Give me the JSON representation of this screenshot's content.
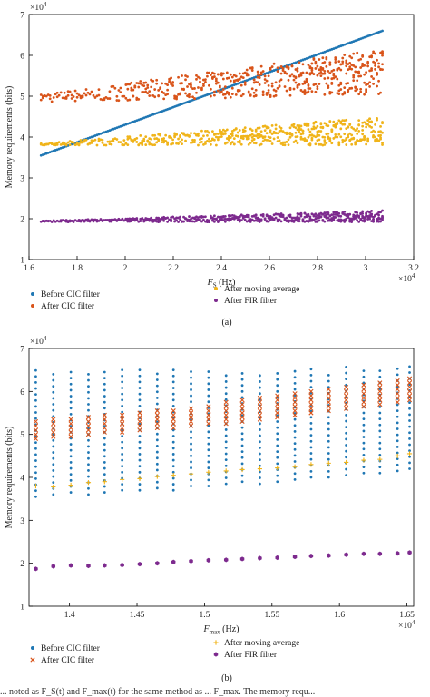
{
  "figure_caption_fragment": "... noted as F_S(t) and F_max(t) for the same method as ... F_max. The memory requ...",
  "colors": {
    "before_cic": "#1f77b4",
    "after_cic": "#d9541a",
    "after_moving_average": "#f0b41a",
    "after_fir": "#7d2a8e",
    "axis": "#000000"
  },
  "chart_data": [
    {
      "panel_label": "(a)",
      "type": "scatter",
      "xlabel_main": "F",
      "xlabel_sub": "S",
      "xlabel_unit": " (Hz)",
      "ylabel": "Memory requirements (bits)",
      "x_multiplier_base": "×10",
      "x_multiplier_exp": "4",
      "y_multiplier_base": "×10",
      "y_multiplier_exp": "4",
      "xlim": [
        1.6,
        3.2
      ],
      "ylim": [
        1,
        7
      ],
      "x_ticks": [
        "1.6",
        "1.8",
        "2",
        "2.2",
        "2.4",
        "2.6",
        "2.8",
        "3",
        "3.2"
      ],
      "x_tick_values": [
        1.6,
        1.8,
        2.0,
        2.2,
        2.4,
        2.6,
        2.8,
        3.0,
        3.2
      ],
      "y_ticks": [
        "1",
        "2",
        "3",
        "4",
        "5",
        "6",
        "7"
      ],
      "y_tick_values": [
        1,
        2,
        3,
        4,
        5,
        6,
        7
      ],
      "grid": false,
      "legend_placement": "below",
      "series": [
        {
          "name": "Before CIC filter",
          "marker": "dot",
          "color": "#1f77b4",
          "description": "linear from (1.65, 3.55) to (3.07, 6.6)",
          "x_range": [
            1.65,
            3.07
          ],
          "y_start": 3.55,
          "y_end": 6.6
        },
        {
          "name": "After CIC filter",
          "marker": "dot",
          "color": "#d9541a",
          "x_range": [
            1.65,
            3.07
          ],
          "y_low_start": 4.85,
          "y_low_end": 5.05,
          "y_high_start": 5.05,
          "y_high_end": 6.15
        },
        {
          "name": "After moving average",
          "marker": "dot",
          "color": "#f0b41a",
          "x_range": [
            1.65,
            3.07
          ],
          "y_low": 3.8,
          "y_high_start": 3.85,
          "y_high_end": 4.5
        },
        {
          "name": "After FIR filter",
          "marker": "dot",
          "color": "#7d2a8e",
          "x_range": [
            1.65,
            3.07
          ],
          "y_low": 1.92,
          "y_high_start": 1.95,
          "y_high_end": 2.2
        }
      ]
    },
    {
      "panel_label": "(b)",
      "type": "scatter",
      "xlabel_main": "F",
      "xlabel_sub": "max",
      "xlabel_unit": " (Hz)",
      "ylabel": "Memory requirements (bits)",
      "x_multiplier_base": "×10",
      "x_multiplier_exp": "4",
      "y_multiplier_base": "×10",
      "y_multiplier_exp": "4",
      "xlim": [
        1.37,
        1.655
      ],
      "ylim": [
        1,
        7
      ],
      "x_ticks": [
        "1.4",
        "1.45",
        "1.5",
        "1.55",
        "1.6",
        "1.65"
      ],
      "x_tick_values": [
        1.4,
        1.45,
        1.5,
        1.55,
        1.6,
        1.65
      ],
      "y_ticks": [
        "1",
        "2",
        "3",
        "4",
        "5",
        "6",
        "7"
      ],
      "y_tick_values": [
        1,
        2,
        3,
        4,
        5,
        6,
        7
      ],
      "grid": false,
      "legend_placement": "below",
      "x": [
        1.375,
        1.388,
        1.401,
        1.414,
        1.426,
        1.439,
        1.452,
        1.465,
        1.477,
        1.49,
        1.503,
        1.516,
        1.528,
        1.541,
        1.554,
        1.567,
        1.579,
        1.592,
        1.605,
        1.618,
        1.63,
        1.643,
        1.652
      ],
      "series": [
        {
          "name": "Before CIC filter",
          "marker": "dot",
          "color": "#1f77b4",
          "y_min": [
            3.55,
            3.6,
            3.65,
            3.6,
            3.65,
            3.7,
            3.7,
            3.75,
            3.7,
            3.8,
            3.8,
            3.85,
            3.9,
            3.85,
            3.9,
            3.95,
            4.0,
            4.0,
            4.05,
            4.1,
            4.1,
            4.15,
            4.2
          ],
          "y_max": [
            6.5,
            6.5,
            6.55,
            6.5,
            6.55,
            6.5,
            6.55,
            6.5,
            6.55,
            6.5,
            6.55,
            6.5,
            6.55,
            6.5,
            6.55,
            6.5,
            6.55,
            6.5,
            6.6,
            6.5,
            6.55,
            6.55,
            6.6
          ]
        },
        {
          "name": "After CIC filter",
          "marker": "x",
          "color": "#d9541a",
          "y_min": [
            4.9,
            4.95,
            4.95,
            5.0,
            5.05,
            5.05,
            5.1,
            5.15,
            5.15,
            5.2,
            5.25,
            5.25,
            5.3,
            5.35,
            5.4,
            5.45,
            5.5,
            5.55,
            5.6,
            5.65,
            5.7,
            5.75,
            5.8
          ],
          "y_max": [
            5.3,
            5.35,
            5.35,
            5.4,
            5.45,
            5.45,
            5.5,
            5.55,
            5.6,
            5.65,
            5.7,
            5.75,
            5.8,
            5.85,
            5.9,
            5.95,
            6.0,
            6.05,
            6.1,
            6.15,
            6.2,
            6.25,
            6.3
          ]
        },
        {
          "name": "After moving average",
          "marker": "plus",
          "color": "#f0b41a",
          "values": [
            3.8,
            3.78,
            3.82,
            3.88,
            3.9,
            3.95,
            3.97,
            4.02,
            4.05,
            4.08,
            4.12,
            4.15,
            4.18,
            4.2,
            4.22,
            4.25,
            4.3,
            4.33,
            4.35,
            4.4,
            4.42,
            4.5,
            4.55
          ]
        },
        {
          "name": "After FIR filter",
          "marker": "hexagon",
          "color": "#7d2a8e",
          "values": [
            1.87,
            1.93,
            1.95,
            1.94,
            1.95,
            1.96,
            1.98,
            2.0,
            2.03,
            2.05,
            2.07,
            2.08,
            2.1,
            2.12,
            2.13,
            2.15,
            2.17,
            2.18,
            2.2,
            2.22,
            2.22,
            2.23,
            2.25
          ]
        }
      ]
    }
  ]
}
